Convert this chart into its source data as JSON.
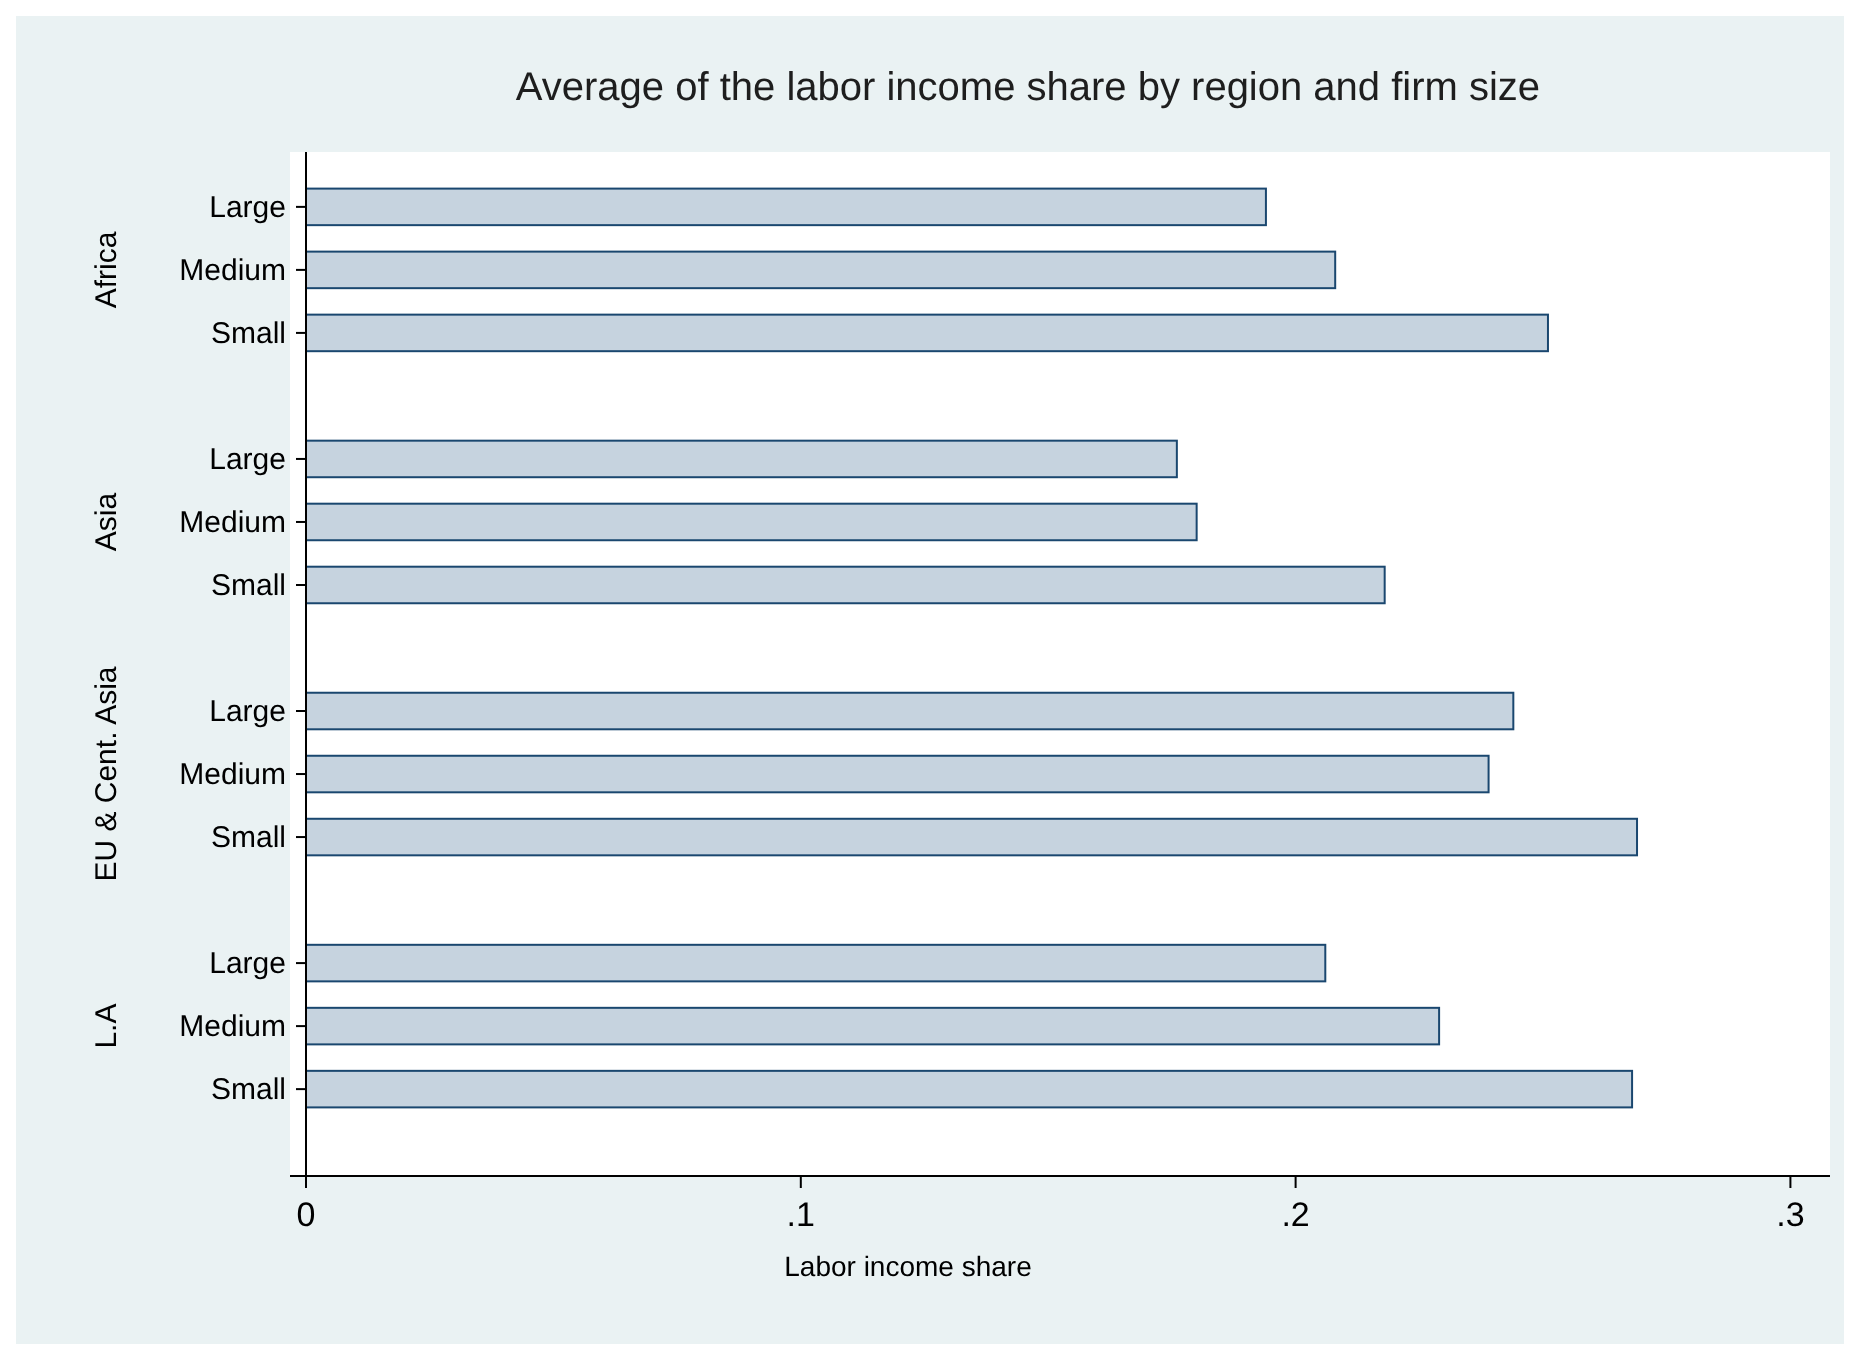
{
  "chart_data": {
    "type": "bar",
    "orientation": "horizontal",
    "title": "Average of the labor income share by region and firm size",
    "xlabel": "Labor income share",
    "categories": [
      "Large",
      "Medium",
      "Small",
      null,
      "Large",
      "Medium",
      "Small",
      null,
      "Large",
      "Medium",
      "Small",
      null,
      "Large",
      "Medium",
      "Small"
    ],
    "values": [
      0.194,
      0.208,
      0.251,
      null,
      0.176,
      0.18,
      0.218,
      null,
      0.244,
      0.239,
      0.269,
      null,
      0.206,
      0.229,
      0.268
    ],
    "color": "#c6d3df",
    "annotations": [
      "Africa",
      "Asia",
      "EU & Cent. Asia",
      "L.A"
    ],
    "xlim": [
      0,
      0.308
    ],
    "xticks": [
      {
        "value": 0,
        "label": "0"
      },
      {
        "value": 0.1,
        "label": ".1"
      },
      {
        "value": 0.2,
        "label": ".2"
      },
      {
        "value": 0.3,
        "label": ".3"
      }
    ],
    "grid": false
  }
}
